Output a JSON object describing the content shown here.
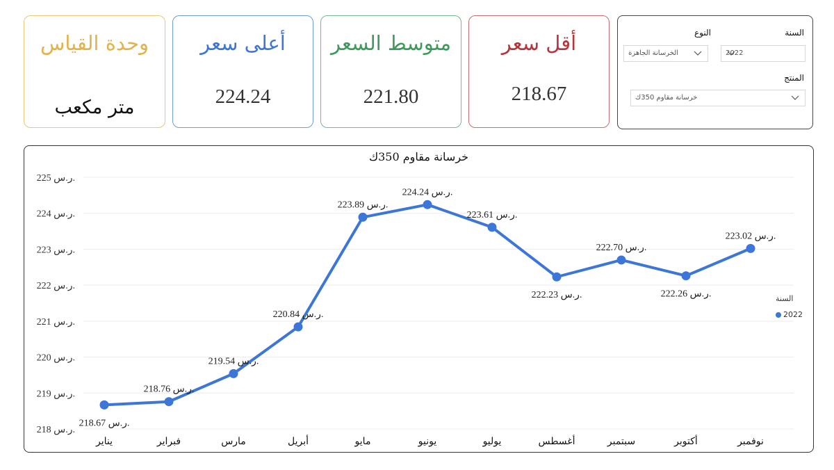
{
  "cards": {
    "unit": {
      "title": "وحدة القياس",
      "value": "متر مكعب",
      "color": "#e3b24a"
    },
    "max": {
      "title": "أعلى سعر",
      "value": "224.24",
      "color": "#3b76d8"
    },
    "avg": {
      "title": "متوسط السعر",
      "value": "221.80",
      "color": "#3e9a5a"
    },
    "min": {
      "title": "أقل سعر",
      "value": "218.67",
      "color": "#b5353a"
    }
  },
  "filters": {
    "year_label": "السنة",
    "year_value": "2022",
    "type_label": "النوع",
    "type_value": "الخرسانة الجاهزة",
    "product_label": "المنتج",
    "product_value": "خرسانة مقاوم 350ك"
  },
  "legend": {
    "title": "السنة",
    "item": "2022",
    "color": "#3b76d8"
  },
  "chart_data": {
    "type": "line",
    "title": "خرسانة مقاوم 350ك",
    "categories": [
      "يناير",
      "فبراير",
      "مارس",
      "أبريل",
      "مايو",
      "يونيو",
      "يوليو",
      "أغسطس",
      "سبتمبر",
      "أكتوبر",
      "نوفمبر"
    ],
    "series": [
      {
        "name": "2022",
        "values": [
          218.67,
          218.76,
          219.54,
          220.84,
          223.89,
          224.24,
          223.61,
          222.23,
          222.7,
          222.26,
          223.02
        ]
      }
    ],
    "value_labels": [
      "218.67 ر.س.",
      "218.76 ر.س.",
      "219.54 ر.س.",
      "220.84 ر.س.",
      "223.89 ر.س.",
      "224.24 ر.س.",
      "223.61 ر.س.",
      "222.23 ر.س.",
      "222.70 ر.س.",
      "222.26 ر.س.",
      "223.02 ر.س."
    ],
    "yticks": [
      218,
      219,
      220,
      221,
      222,
      223,
      224,
      225
    ],
    "ytick_labels": [
      "218 ر.س.",
      "219 ر.س.",
      "220 ر.س.",
      "221 ر.س.",
      "222 ر.س.",
      "223 ر.س.",
      "224 ر.س.",
      "225 ر.س."
    ],
    "ylim": [
      218,
      225
    ],
    "grid": true,
    "legend_position": "right",
    "line_color": "#3b76d8"
  }
}
